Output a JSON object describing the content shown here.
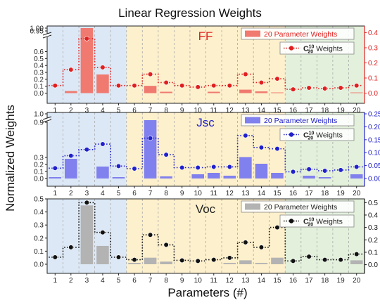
{
  "figure": {
    "title": "Linear Regression Weights",
    "ylabel": "Normalized Weights",
    "xlabel": "Parameters (#)"
  },
  "chart_data": [
    {
      "type": "bar",
      "panel_title": "FF",
      "categories": [
        "1",
        "2",
        "3",
        "4",
        "5",
        "6",
        "7",
        "8",
        "9",
        "10",
        "11",
        "12",
        "13",
        "14",
        "15",
        "16",
        "17",
        "18",
        "19",
        "20"
      ],
      "series": [
        {
          "name": "20 Parameter Weights",
          "axis": "left",
          "color": "#f07a70",
          "values": [
            0.0,
            0.03,
            1.0,
            0.27,
            0.0,
            0.0,
            0.105,
            0.02,
            0.0,
            0.0,
            0.02,
            0.0,
            0.05,
            0.025,
            0.01,
            0.0,
            0.0,
            0.0,
            0.0,
            0.01
          ]
        },
        {
          "name": "C20 10 Weights",
          "axis": "right",
          "color": "#e02020",
          "values": [
            0.05,
            0.155,
            0.36,
            0.17,
            0.05,
            0.05,
            0.125,
            0.07,
            0.05,
            0.04,
            0.05,
            0.05,
            0.125,
            0.07,
            0.095,
            0.025,
            0.035,
            0.03,
            0.035,
            0.05
          ]
        }
      ],
      "yticks_left": [
        "1.00",
        "0.95",
        "0.6",
        "0.5",
        "0.4",
        "0.3",
        "0.2",
        "0.1",
        "0.0"
      ],
      "yticks_right": [
        "0.0",
        "0.1",
        "0.2",
        "0.3",
        "0.4"
      ],
      "ylim_right": [
        0,
        0.43
      ],
      "right_axis_color": "#e02020"
    },
    {
      "type": "bar",
      "panel_title": "Jsc",
      "categories": [
        "1",
        "2",
        "3",
        "4",
        "5",
        "6",
        "7",
        "8",
        "9",
        "10",
        "11",
        "12",
        "13",
        "14",
        "15",
        "16",
        "17",
        "18",
        "19",
        "20"
      ],
      "series": [
        {
          "name": "20 Parameter Weights",
          "axis": "left",
          "color": "#8080ee",
          "values": [
            0.02,
            0.28,
            0.0,
            0.17,
            0.02,
            0.0,
            0.925,
            0.03,
            0.0,
            0.06,
            0.08,
            0.04,
            0.35,
            0.21,
            0.08,
            0.0,
            0.04,
            0.02,
            0.0,
            0.06
          ]
        },
        {
          "name": "C20 10 Weights",
          "axis": "right",
          "color": "#2020cc",
          "values": [
            0.04,
            0.088,
            0.112,
            0.133,
            0.048,
            0.038,
            0.156,
            0.092,
            0.042,
            0.042,
            0.045,
            0.045,
            0.166,
            0.12,
            0.115,
            0.026,
            0.036,
            0.03,
            0.033,
            0.045
          ]
        }
      ],
      "yticks_left": [
        "1.0",
        "0.9",
        "0.3",
        "0.2",
        "0.1",
        "0.0"
      ],
      "yticks_right": [
        "0.00",
        "0.05",
        "0.10",
        "0.15",
        "0.20",
        "0.25"
      ],
      "ylim_right": [
        0,
        0.25
      ],
      "right_axis_color": "#2020cc"
    },
    {
      "type": "bar",
      "panel_title": "Voc",
      "categories": [
        "1",
        "2",
        "3",
        "4",
        "5",
        "6",
        "7",
        "8",
        "9",
        "10",
        "11",
        "12",
        "13",
        "14",
        "15",
        "16",
        "17",
        "18",
        "19",
        "20"
      ],
      "series": [
        {
          "name": "20 Parameter Weights",
          "axis": "left",
          "color": "#b3b3b3",
          "values": [
            0.0,
            0.0,
            0.45,
            0.14,
            0.0,
            0.01,
            0.05,
            0.02,
            0.0,
            0.0,
            0.0,
            0.01,
            0.03,
            0.01,
            0.05,
            0.0,
            0.0,
            0.0,
            0.0,
            0.03
          ]
        },
        {
          "name": "C20 10 Weights",
          "axis": "right",
          "color": "#111111",
          "values": [
            0.06,
            0.14,
            0.5,
            0.26,
            0.06,
            0.04,
            0.24,
            0.16,
            0.035,
            0.03,
            0.04,
            0.055,
            0.18,
            0.14,
            0.3,
            0.03,
            0.065,
            0.04,
            0.04,
            0.085
          ]
        }
      ],
      "yticks_left": [
        "0.0",
        "0.1",
        "0.2",
        "0.3",
        "0.4",
        "0.5"
      ],
      "ylim_left": [
        -0.07,
        0.5
      ],
      "yticks_right": [
        "0.0",
        "0.1",
        "0.2",
        "0.3",
        "0.4",
        "0.5"
      ],
      "ylim_right": [
        -0.07,
        0.53
      ],
      "right_axis_color": "#111111"
    }
  ],
  "legend": {
    "bar_label": "20 Parameter Weights",
    "line_label_main": "C",
    "line_label_sup": "10",
    "line_label_sub": "20",
    "line_label_tail": " Weights"
  },
  "region_colors": {
    "blue": "#dce8f6",
    "orange": "#fdf0cc",
    "green": "#e3f1dc"
  }
}
